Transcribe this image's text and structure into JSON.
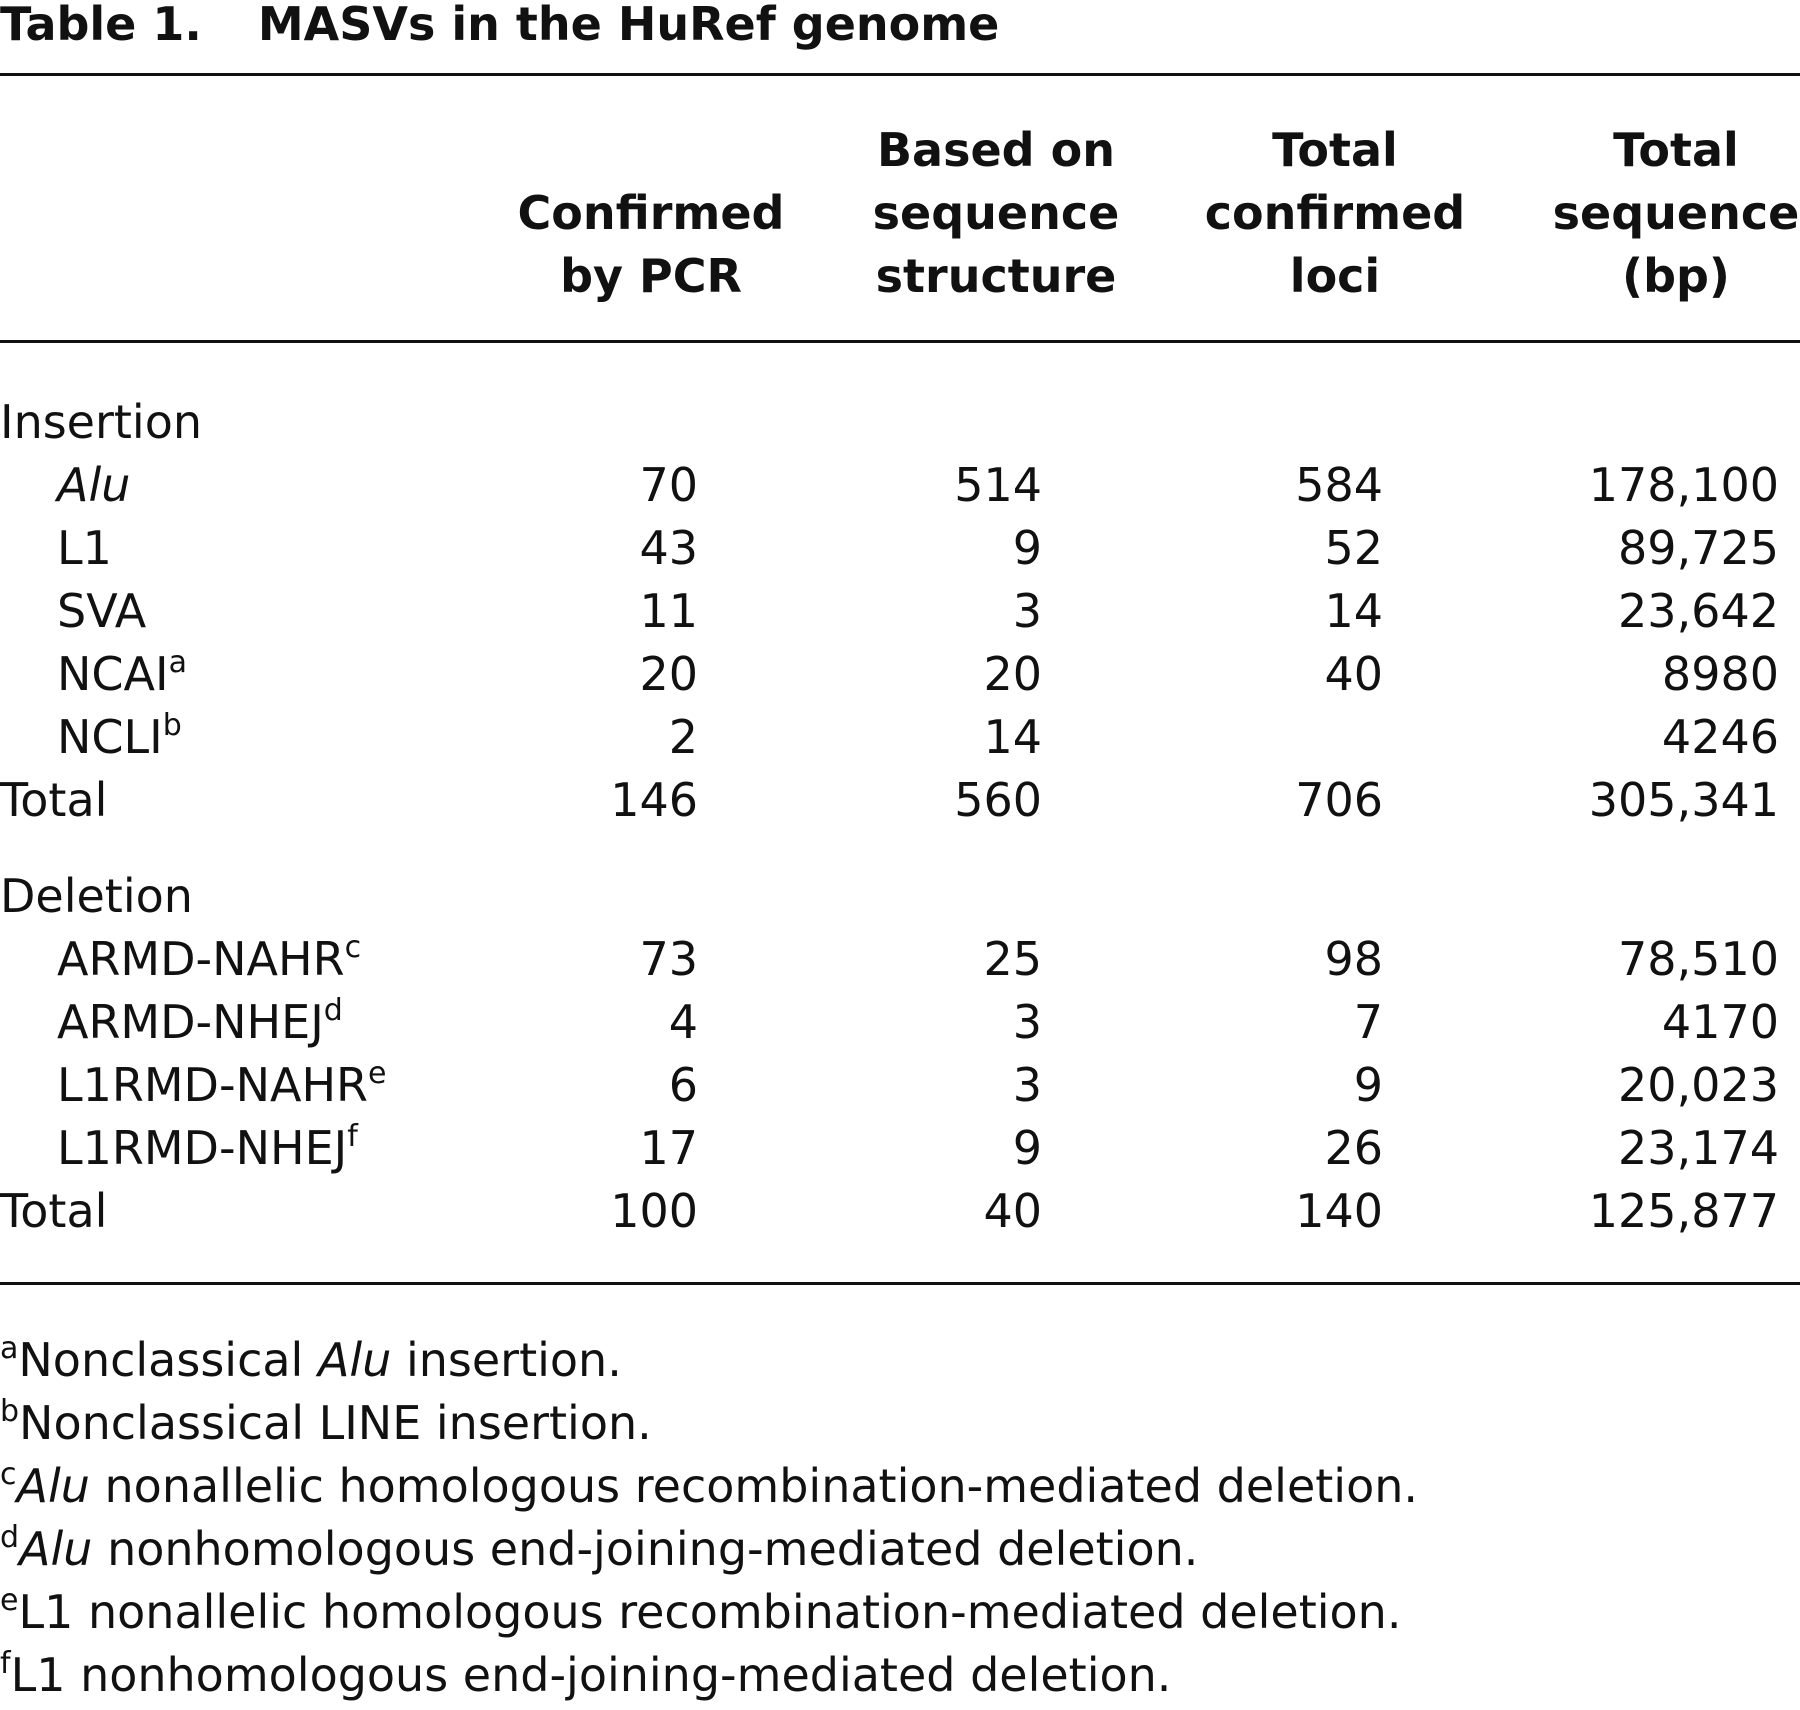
{
  "title": {
    "label": "Table 1.",
    "text": "MASVs in the HuRef genome"
  },
  "table": {
    "columns": [
      [
        "Confirmed",
        "by PCR"
      ],
      [
        "Based on",
        "sequence",
        "structure"
      ],
      [
        "Total",
        "confirmed",
        "loci"
      ],
      [
        "Total",
        "sequence",
        "(bp)"
      ]
    ],
    "sections": [
      {
        "name": "Insertion",
        "rows": [
          {
            "label": "Alu",
            "italic": true,
            "cells": [
              "70",
              "514",
              "584",
              "178,100"
            ]
          },
          {
            "label": "L1",
            "cells": [
              "43",
              "9",
              "52",
              "89,725"
            ]
          },
          {
            "label": "SVA",
            "cells": [
              "11",
              "3",
              "14",
              "23,642"
            ]
          },
          {
            "label": "NCAI",
            "note": "a",
            "cells": [
              "20",
              "20",
              "40",
              "8980"
            ]
          },
          {
            "label": "NCLI",
            "note": "b",
            "cells": [
              "2",
              "14",
              null,
              "4246"
            ]
          }
        ],
        "total": {
          "label": "Total",
          "cells": [
            "146",
            "560",
            "706",
            "305,341"
          ]
        }
      },
      {
        "name": "Deletion",
        "rows": [
          {
            "label": "ARMD-NAHR",
            "note": "c",
            "cells": [
              "73",
              "25",
              "98",
              "78,510"
            ]
          },
          {
            "label": "ARMD-NHEJ",
            "note": "d",
            "cells": [
              "4",
              "3",
              "7",
              "4170"
            ]
          },
          {
            "label": "L1RMD-NAHR",
            "note": "e",
            "cells": [
              "6",
              "3",
              "9",
              "20,023"
            ]
          },
          {
            "label": "L1RMD-NHEJ",
            "note": "f",
            "cells": [
              "17",
              "9",
              "26",
              "23,174"
            ]
          }
        ],
        "total": {
          "label": "Total",
          "cells": [
            "100",
            "40",
            "140",
            "125,877"
          ]
        }
      }
    ]
  },
  "footnotes": [
    {
      "mark": "a",
      "segments": [
        {
          "text": "Nonclassical "
        },
        {
          "text": "Alu",
          "italic": true
        },
        {
          "text": " insertion."
        }
      ]
    },
    {
      "mark": "b",
      "segments": [
        {
          "text": "Nonclassical LINE insertion."
        }
      ]
    },
    {
      "mark": "c",
      "segments": [
        {
          "text": "Alu",
          "italic": true
        },
        {
          "text": " nonallelic homologous recombination-mediated deletion."
        }
      ]
    },
    {
      "mark": "d",
      "segments": [
        {
          "text": "Alu",
          "italic": true
        },
        {
          "text": " nonhomologous end-joining-mediated deletion."
        }
      ]
    },
    {
      "mark": "e",
      "segments": [
        {
          "text": "L1 nonallelic homologous recombination-mediated deletion."
        }
      ]
    },
    {
      "mark": "f",
      "segments": [
        {
          "text": "L1 nonhomologous end-joining-mediated deletion."
        }
      ]
    }
  ]
}
